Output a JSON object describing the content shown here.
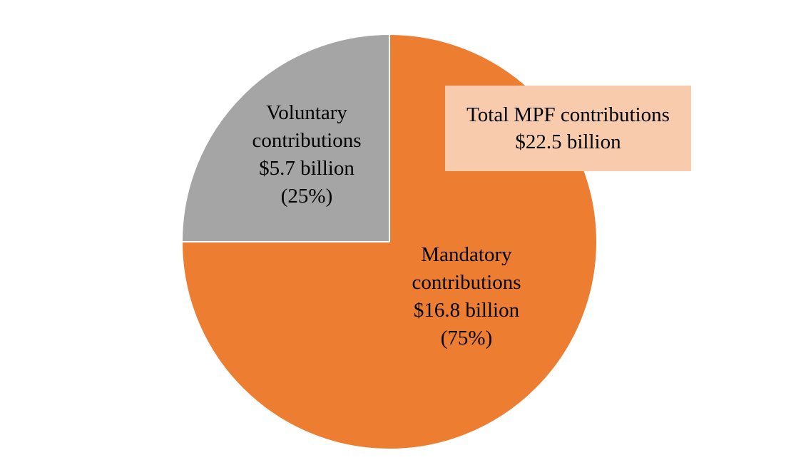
{
  "chart_data": {
    "type": "pie",
    "title": "",
    "slices": [
      {
        "label_lines": [
          "Mandatory",
          "contributions",
          "$16.8 billion",
          "(75%)"
        ],
        "value": 16.8,
        "percent": 75,
        "color": "#ed7d31"
      },
      {
        "label_lines": [
          "Voluntary",
          "contributions",
          "$5.7 billion",
          "(25%)"
        ],
        "value": 5.7,
        "percent": 25,
        "color": "#a5a5a5"
      }
    ],
    "start_angle_deg": 0,
    "direction": "clockwise",
    "slice_border_color": "#ffffff",
    "annotation": {
      "line1": "Total MPF contributions",
      "line2": "$22.5 billion",
      "background": "#f8cbad"
    }
  }
}
